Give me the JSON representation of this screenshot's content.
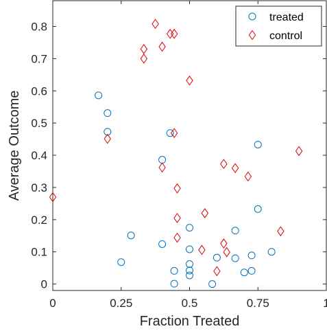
{
  "chart_data": {
    "type": "scatter",
    "xlabel": "Fraction Treated",
    "ylabel": "Average Outcome",
    "xlim": [
      0,
      1
    ],
    "ylim": [
      -0.02,
      0.88
    ],
    "xticks": [
      0,
      0.25,
      0.5,
      0.75,
      1
    ],
    "xtick_labels": [
      "0",
      "0.25",
      "0.5",
      "0.75",
      "1"
    ],
    "yticks": [
      0,
      0.1,
      0.2,
      0.3,
      0.4,
      0.5,
      0.6,
      0.7,
      0.8
    ],
    "ytick_labels": [
      "0",
      "0.1",
      "0.2",
      "0.3",
      "0.4",
      "0.5",
      "0.6",
      "0.7",
      "0.8"
    ],
    "grid": false,
    "legend_position": "top-right",
    "series": [
      {
        "name": "treated",
        "marker": "circle",
        "color": "#0072BD",
        "points": [
          [
            0.167,
            0.586
          ],
          [
            0.2,
            0.531
          ],
          [
            0.2,
            0.473
          ],
          [
            0.25,
            0.068
          ],
          [
            0.286,
            0.151
          ],
          [
            0.4,
            0.386
          ],
          [
            0.4,
            0.124
          ],
          [
            0.429,
            0.469
          ],
          [
            0.444,
            0.041
          ],
          [
            0.444,
            0.001
          ],
          [
            0.5,
            0.175
          ],
          [
            0.5,
            0.108
          ],
          [
            0.5,
            0.062
          ],
          [
            0.5,
            0.042
          ],
          [
            0.5,
            0.027
          ],
          [
            0.583,
            0.0
          ],
          [
            0.6,
            0.082
          ],
          [
            0.667,
            0.166
          ],
          [
            0.667,
            0.08
          ],
          [
            0.7,
            0.036
          ],
          [
            0.727,
            0.089
          ],
          [
            0.727,
            0.041
          ],
          [
            0.75,
            0.433
          ],
          [
            0.75,
            0.233
          ],
          [
            0.8,
            0.1
          ]
        ]
      },
      {
        "name": "control",
        "marker": "diamond",
        "color": "#E00000",
        "points": [
          [
            0.0,
            0.27
          ],
          [
            0.2,
            0.451
          ],
          [
            0.333,
            0.73
          ],
          [
            0.333,
            0.7
          ],
          [
            0.375,
            0.808
          ],
          [
            0.4,
            0.737
          ],
          [
            0.4,
            0.362
          ],
          [
            0.429,
            0.777
          ],
          [
            0.444,
            0.777
          ],
          [
            0.444,
            0.469
          ],
          [
            0.455,
            0.297
          ],
          [
            0.455,
            0.205
          ],
          [
            0.455,
            0.144
          ],
          [
            0.5,
            0.632
          ],
          [
            0.545,
            0.106
          ],
          [
            0.556,
            0.22
          ],
          [
            0.6,
            0.04
          ],
          [
            0.625,
            0.373
          ],
          [
            0.625,
            0.126
          ],
          [
            0.636,
            0.099
          ],
          [
            0.667,
            0.36
          ],
          [
            0.714,
            0.334
          ],
          [
            0.833,
            0.164
          ],
          [
            0.9,
            0.413
          ]
        ]
      }
    ]
  }
}
